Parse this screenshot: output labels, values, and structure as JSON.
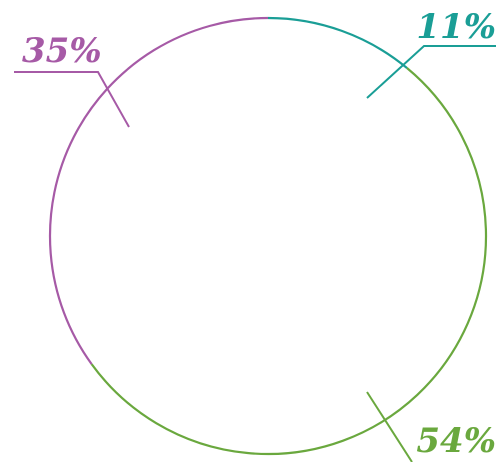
{
  "chart_data": {
    "type": "pie",
    "style": "outline-ring",
    "legend": "none",
    "slices": [
      {
        "label": "11%",
        "value": 11,
        "color": "#1a9e96"
      },
      {
        "label": "54%",
        "value": 54,
        "color": "#6aa83e"
      },
      {
        "label": "35%",
        "value": 35,
        "color": "#a65aa6"
      }
    ]
  }
}
